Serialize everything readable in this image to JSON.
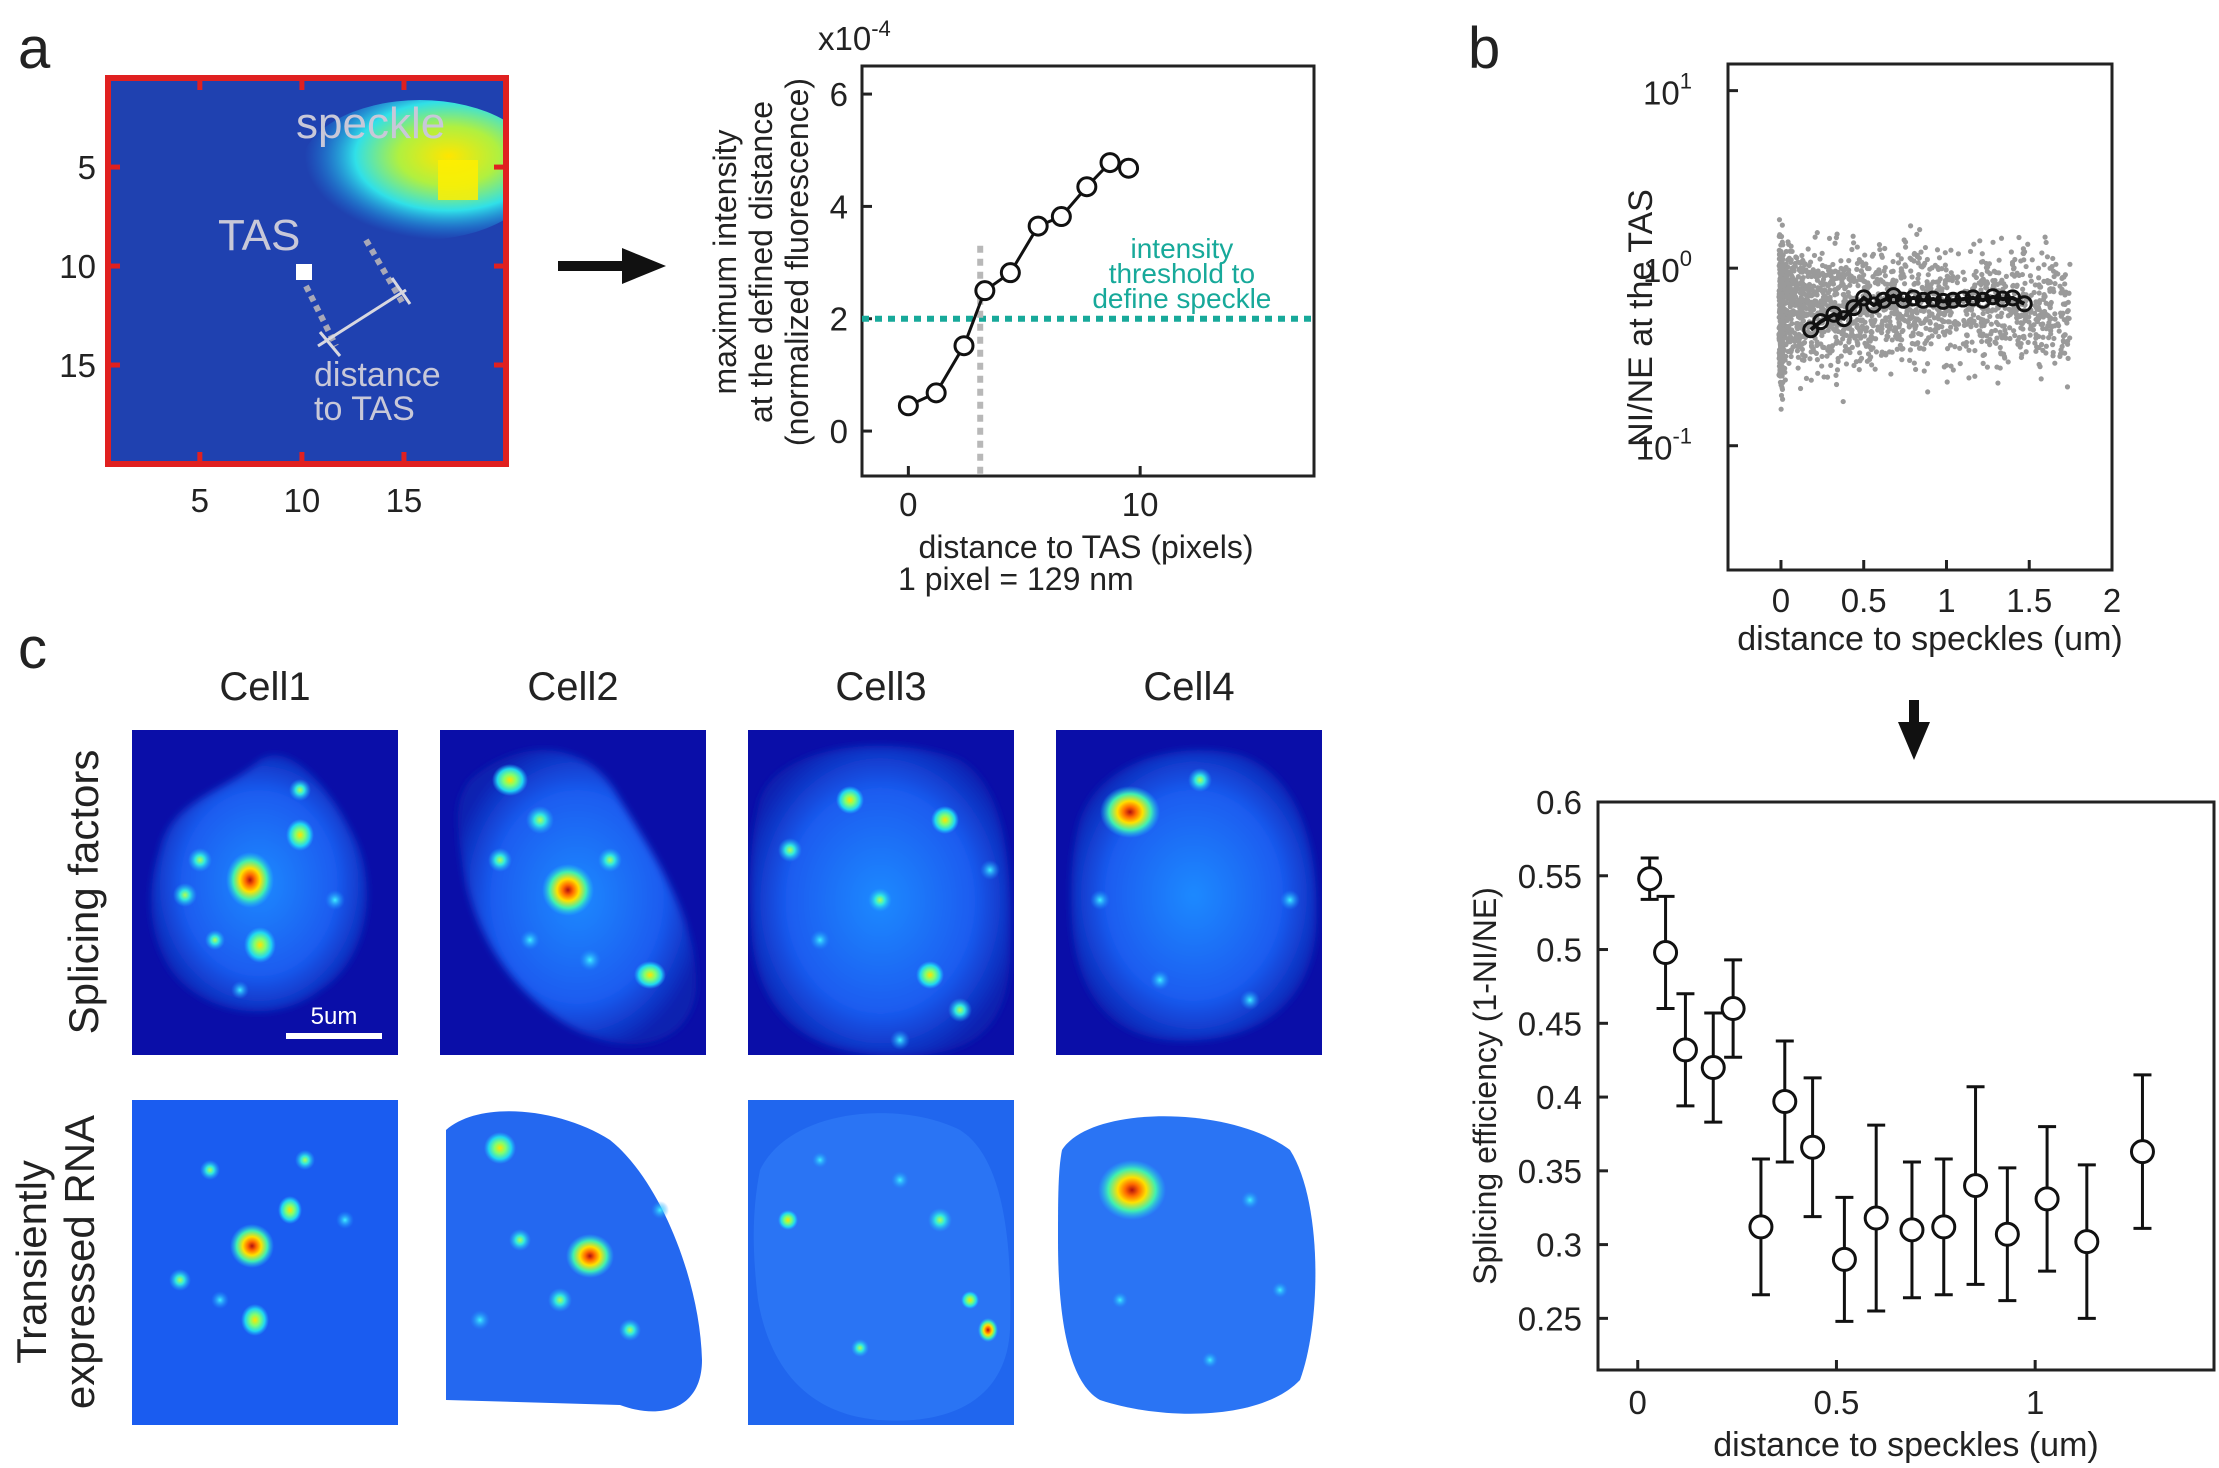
{
  "panel_labels": {
    "a": "a",
    "b": "b",
    "c": "c"
  },
  "panel_a_image": {
    "speckle_label": "speckle",
    "tas_label": "TAS",
    "distance_label_line1": "distance",
    "distance_label_line2": "to TAS",
    "y_ticks": [
      "5",
      "10",
      "15"
    ],
    "x_ticks": [
      "5",
      "10",
      "15"
    ],
    "frame_color": "#e02020"
  },
  "chart_data": [
    {
      "id": "a-right",
      "type": "line",
      "title": "",
      "exponent_label": "x10",
      "exponent_power": "-4",
      "xlabel": "distance to TAS (pixels)",
      "xlabel_note": "1 pixel = 129 nm",
      "ylabel_lines": [
        "maximum intensity",
        "at the defined distance",
        "(normalized fluorescence)"
      ],
      "xlim": [
        -2,
        17.5
      ],
      "ylim": [
        -0.8,
        6.5
      ],
      "x_ticks": [
        0,
        10
      ],
      "x_tick_labels": [
        "0",
        "10"
      ],
      "y_ticks": [
        0,
        2,
        4,
        6
      ],
      "y_tick_labels": [
        "0",
        "2",
        "4",
        "6"
      ],
      "x": [
        0,
        1.2,
        2.4,
        3.3,
        4.4,
        5.6,
        6.6,
        7.7,
        8.7,
        9.5
      ],
      "y": [
        0.45,
        0.68,
        1.52,
        2.5,
        2.82,
        3.65,
        3.82,
        4.35,
        4.78,
        4.68
      ],
      "threshold_y": 2,
      "threshold_label": [
        "intensity",
        "threshold to",
        "define speckle"
      ],
      "threshold_color": "#17a99a",
      "crossing_x": 3.1
    },
    {
      "id": "b-top",
      "type": "scatter",
      "xlabel": "distance to speckles (um)",
      "ylabel": "NI/NE at the TAS",
      "yscale": "log",
      "xlim": [
        -0.32,
        2.0
      ],
      "ylim_log10": [
        -1.7,
        1.15
      ],
      "x_ticks": [
        0,
        0.5,
        1,
        1.5,
        2
      ],
      "x_tick_labels": [
        "0",
        "0.5",
        "1",
        "1.5",
        "2"
      ],
      "y_ticks_log10": [
        -1,
        0,
        1
      ],
      "y_tick_base": "10",
      "y_tick_exponents": [
        "-1",
        "0",
        "1"
      ],
      "mean_series": {
        "x": [
          0.18,
          0.24,
          0.32,
          0.38,
          0.44,
          0.5,
          0.56,
          0.62,
          0.68,
          0.74,
          0.8,
          0.86,
          0.92,
          0.98,
          1.04,
          1.1,
          1.16,
          1.22,
          1.28,
          1.34,
          1.4,
          1.47
        ],
        "y": [
          0.45,
          0.5,
          0.55,
          0.52,
          0.6,
          0.68,
          0.62,
          0.66,
          0.7,
          0.66,
          0.68,
          0.66,
          0.67,
          0.65,
          0.66,
          0.67,
          0.68,
          0.66,
          0.69,
          0.67,
          0.68,
          0.63
        ]
      }
    },
    {
      "id": "b-bottom",
      "type": "scatter",
      "xlabel": "distance to speckles (um)",
      "ylabel": "Splicing efficiency (1-NI/NE)",
      "xlim": [
        -0.1,
        1.45
      ],
      "ylim": [
        0.215,
        0.6
      ],
      "x_ticks": [
        0,
        0.5,
        1
      ],
      "x_tick_labels": [
        "0",
        "0.5",
        "1"
      ],
      "y_ticks": [
        0.25,
        0.3,
        0.35,
        0.4,
        0.45,
        0.5,
        0.55,
        0.6
      ],
      "y_tick_labels": [
        "0.25",
        "0.3",
        "0.35",
        "0.4",
        "0.45",
        "0.5",
        "0.55",
        "0.6"
      ],
      "x": [
        0.03,
        0.07,
        0.12,
        0.19,
        0.24,
        0.31,
        0.37,
        0.44,
        0.52,
        0.6,
        0.69,
        0.77,
        0.85,
        0.93,
        1.03,
        1.13,
        1.27
      ],
      "y": [
        0.548,
        0.498,
        0.432,
        0.42,
        0.46,
        0.312,
        0.397,
        0.366,
        0.29,
        0.318,
        0.31,
        0.312,
        0.34,
        0.307,
        0.331,
        0.302,
        0.363
      ],
      "err": [
        0.014,
        0.038,
        0.038,
        0.037,
        0.033,
        0.046,
        0.041,
        0.047,
        0.042,
        0.063,
        0.046,
        0.046,
        0.067,
        0.045,
        0.049,
        0.052,
        0.052
      ]
    }
  ],
  "panel_c": {
    "cell_titles": [
      "Cell1",
      "Cell2",
      "Cell3",
      "Cell4"
    ],
    "row_labels": {
      "row1": [
        "Splicing factors"
      ],
      "row2": [
        "Transiently",
        "expressed RNA"
      ]
    },
    "scale_bar_label": "5um"
  }
}
